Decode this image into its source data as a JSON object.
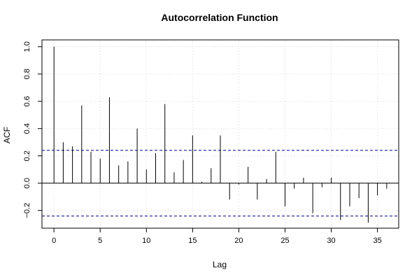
{
  "chart_data": {
    "type": "bar",
    "title": "Autocorrelation Function",
    "xlabel": "Lag",
    "ylabel": "ACF",
    "xlim": [
      -1.3,
      37.3
    ],
    "ylim": [
      -0.33,
      1.05
    ],
    "x_ticks": [
      0,
      5,
      10,
      15,
      20,
      25,
      30,
      35
    ],
    "y_ticks": [
      -0.2,
      0.0,
      0.2,
      0.4,
      0.6,
      0.8,
      1.0
    ],
    "y_tick_labels": [
      "−0.2",
      "0.0",
      "0.2",
      "0.4",
      "0.6",
      "0.8",
      "1.0"
    ],
    "grid": true,
    "confidence_bound": 0.241,
    "lags": [
      0,
      1,
      2,
      3,
      4,
      5,
      6,
      7,
      8,
      9,
      10,
      11,
      12,
      13,
      14,
      15,
      16,
      17,
      18,
      19,
      20,
      21,
      22,
      23,
      24,
      25,
      26,
      27,
      28,
      29,
      30,
      31,
      32,
      33,
      34,
      35,
      36
    ],
    "values": [
      1.0,
      0.3,
      0.27,
      0.57,
      0.23,
      0.18,
      0.63,
      0.13,
      0.16,
      0.4,
      0.1,
      0.22,
      0.58,
      0.08,
      0.17,
      0.35,
      0.01,
      0.11,
      0.35,
      -0.12,
      -0.01,
      0.12,
      -0.12,
      0.03,
      0.23,
      -0.17,
      -0.04,
      0.04,
      -0.22,
      -0.03,
      0.04,
      -0.27,
      -0.17,
      -0.11,
      -0.29,
      -0.09,
      -0.04
    ],
    "colors": {
      "bars": "#000000",
      "bounds": "#00008b",
      "zero_line": "#000000",
      "grid": "#d8d8d8",
      "frame": "#000000"
    }
  }
}
